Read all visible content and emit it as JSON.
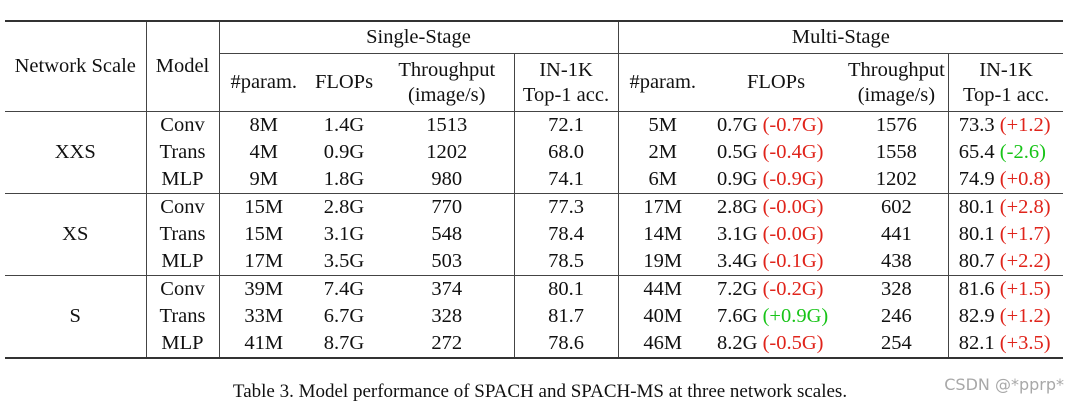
{
  "table": {
    "header": {
      "network_scale": "Network Scale",
      "model": "Model",
      "single_stage": "Single-Stage",
      "multi_stage": "Multi-Stage",
      "single_cols": {
        "param": "#param.",
        "flops": "FLOPs",
        "throughput_1": "Throughput",
        "throughput_2": "(image/s)",
        "acc_1": "IN-1K",
        "acc_2": "Top-1 acc."
      },
      "multi_cols": {
        "param": "#param.",
        "flops": "FLOPs",
        "throughput_1": "Throughput",
        "throughput_2": "(image/s)",
        "acc_1": "IN-1K",
        "acc_2": "Top-1 acc."
      }
    },
    "groups": [
      {
        "scale": "XXS",
        "rows": [
          {
            "model": "Conv",
            "s_param": "8M",
            "s_flops": "1.4G",
            "s_tp": "1513",
            "s_acc": "72.1",
            "m_param": "5M",
            "m_flops": "0.7G",
            "m_flops_delta": "(-0.7G)",
            "m_flops_delta_color": "red",
            "m_tp": "1576",
            "m_acc": "73.3",
            "m_acc_delta": "(+1.2)",
            "m_acc_delta_color": "red"
          },
          {
            "model": "Trans",
            "s_param": "4M",
            "s_flops": "0.9G",
            "s_tp": "1202",
            "s_acc": "68.0",
            "m_param": "2M",
            "m_flops": "0.5G",
            "m_flops_delta": "(-0.4G)",
            "m_flops_delta_color": "red",
            "m_tp": "1558",
            "m_acc": "65.4",
            "m_acc_delta": "(-2.6)",
            "m_acc_delta_color": "green"
          },
          {
            "model": "MLP",
            "s_param": "9M",
            "s_flops": "1.8G",
            "s_tp": "980",
            "s_acc": "74.1",
            "m_param": "6M",
            "m_flops": "0.9G",
            "m_flops_delta": "(-0.9G)",
            "m_flops_delta_color": "red",
            "m_tp": "1202",
            "m_acc": "74.9",
            "m_acc_delta": "(+0.8)",
            "m_acc_delta_color": "red"
          }
        ]
      },
      {
        "scale": "XS",
        "rows": [
          {
            "model": "Conv",
            "s_param": "15M",
            "s_flops": "2.8G",
            "s_tp": "770",
            "s_acc": "77.3",
            "m_param": "17M",
            "m_flops": "2.8G",
            "m_flops_delta": "(-0.0G)",
            "m_flops_delta_color": "red",
            "m_tp": "602",
            "m_acc": "80.1",
            "m_acc_delta": "(+2.8)",
            "m_acc_delta_color": "red"
          },
          {
            "model": "Trans",
            "s_param": "15M",
            "s_flops": "3.1G",
            "s_tp": "548",
            "s_acc": "78.4",
            "m_param": "14M",
            "m_flops": "3.1G",
            "m_flops_delta": "(-0.0G)",
            "m_flops_delta_color": "red",
            "m_tp": "441",
            "m_acc": "80.1",
            "m_acc_delta": "(+1.7)",
            "m_acc_delta_color": "red"
          },
          {
            "model": "MLP",
            "s_param": "17M",
            "s_flops": "3.5G",
            "s_tp": "503",
            "s_acc": "78.5",
            "m_param": "19M",
            "m_flops": "3.4G",
            "m_flops_delta": "(-0.1G)",
            "m_flops_delta_color": "red",
            "m_tp": "438",
            "m_acc": "80.7",
            "m_acc_delta": "(+2.2)",
            "m_acc_delta_color": "red"
          }
        ]
      },
      {
        "scale": "S",
        "rows": [
          {
            "model": "Conv",
            "s_param": "39M",
            "s_flops": "7.4G",
            "s_tp": "374",
            "s_acc": "80.1",
            "m_param": "44M",
            "m_flops": "7.2G",
            "m_flops_delta": "(-0.2G)",
            "m_flops_delta_color": "red",
            "m_tp": "328",
            "m_acc": "81.6",
            "m_acc_delta": "(+1.5)",
            "m_acc_delta_color": "red"
          },
          {
            "model": "Trans",
            "s_param": "33M",
            "s_flops": "6.7G",
            "s_tp": "328",
            "s_acc": "81.7",
            "m_param": "40M",
            "m_flops": "7.6G",
            "m_flops_delta": "(+0.9G)",
            "m_flops_delta_color": "green",
            "m_tp": "246",
            "m_acc": "82.9",
            "m_acc_delta": "(+1.2)",
            "m_acc_delta_color": "red"
          },
          {
            "model": "MLP",
            "s_param": "41M",
            "s_flops": "8.7G",
            "s_tp": "272",
            "s_acc": "78.6",
            "m_param": "46M",
            "m_flops": "8.2G",
            "m_flops_delta": "(-0.5G)",
            "m_flops_delta_color": "red",
            "m_tp": "254",
            "m_acc": "82.1",
            "m_acc_delta": "(+3.5)",
            "m_acc_delta_color": "red"
          }
        ]
      }
    ]
  },
  "caption": "Table 3. Model performance of SPACH and SPACH-MS at three network scales.",
  "watermark": "CSDN @*pprp*",
  "colors": {
    "red": "#e0241b",
    "green": "#18c418"
  }
}
